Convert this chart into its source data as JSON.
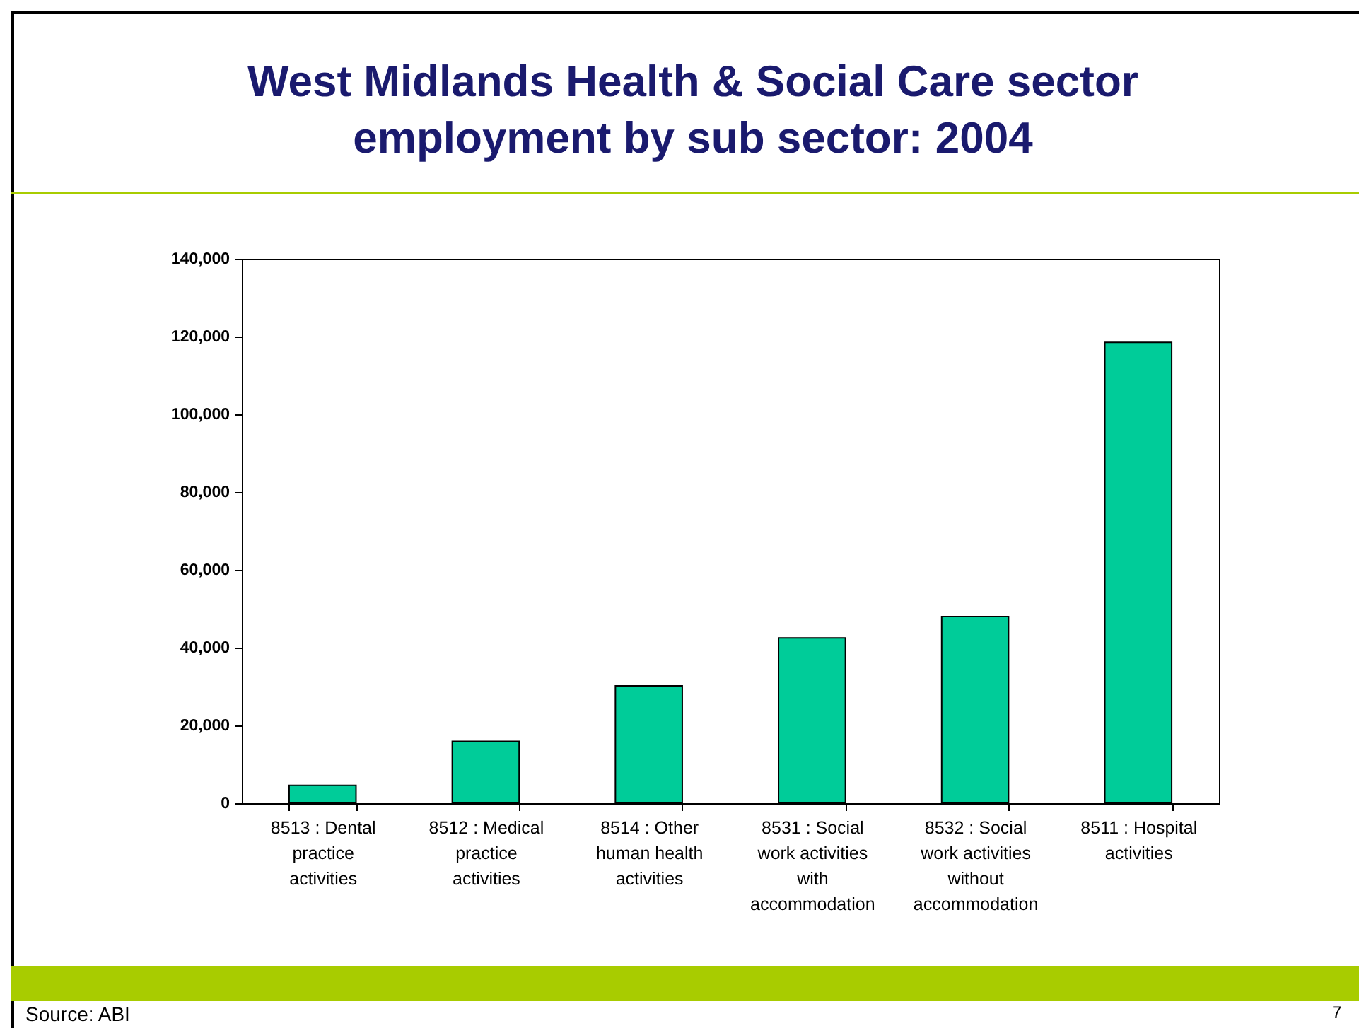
{
  "chart_data": {
    "type": "bar",
    "title": "West Midlands Health & Social Care sector employment by sub sector: 2004",
    "categories": [
      "8513 : Dental practice activities",
      "8512 : Medical practice activities",
      "8514 : Other human health activities",
      "8531 : Social work activities with accommodation",
      "8532 : Social work activities without accommodation",
      "8511 : Hospital activities"
    ],
    "values": [
      4600,
      15900,
      30200,
      42500,
      48000,
      118500
    ],
    "color": "#00cc99",
    "ylim": [
      0,
      140000
    ],
    "yticks": [
      {
        "value": 0,
        "label": "0"
      },
      {
        "value": 20000,
        "label": "20,000"
      },
      {
        "value": 40000,
        "label": "40,000"
      },
      {
        "value": 60000,
        "label": "60,000"
      },
      {
        "value": 80000,
        "label": "80,000"
      },
      {
        "value": 100000,
        "label": "100,000"
      },
      {
        "value": 120000,
        "label": "120,000"
      },
      {
        "value": 140000,
        "label": "140,000"
      }
    ],
    "grid": false,
    "annotations": [
      "Source: ABI",
      "7"
    ]
  }
}
